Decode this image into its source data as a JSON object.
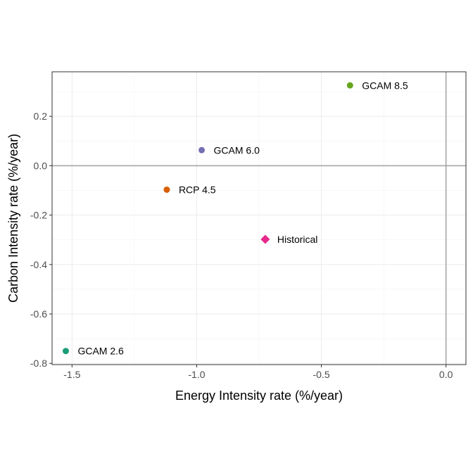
{
  "chart_data": {
    "type": "scatter",
    "xlabel": "Energy Intensity rate (%/year)",
    "ylabel": "Carbon Intensity rate (%/year)",
    "xlim": [
      -1.58,
      0.08
    ],
    "ylim": [
      -0.805,
      0.38
    ],
    "x_ticks": [
      -1.5,
      -1.0,
      -0.5,
      0.0
    ],
    "x_tick_labels": [
      "-1.5",
      "-1.0",
      "-0.5",
      "0.0"
    ],
    "y_ticks": [
      -0.8,
      -0.6,
      -0.4,
      -0.2,
      0.0,
      0.2
    ],
    "y_tick_labels": [
      "-0.8",
      "-0.6",
      "-0.4",
      "-0.2",
      "0.0",
      "0.2"
    ],
    "reference_lines": {
      "x": 0.0,
      "y": 0.0,
      "color": "#a6a6a6"
    },
    "grid": true,
    "points": [
      {
        "label": "GCAM 8.5",
        "x": -0.385,
        "y": 0.325,
        "color": "#66a61e",
        "shape": "circle"
      },
      {
        "label": "GCAM 6.0",
        "x": -0.98,
        "y": 0.063,
        "color": "#7570b3",
        "shape": "circle"
      },
      {
        "label": "RCP 4.5",
        "x": -1.12,
        "y": -0.097,
        "color": "#d95f02",
        "shape": "circle"
      },
      {
        "label": "Historical",
        "x": -0.725,
        "y": -0.298,
        "color": "#e7298a",
        "shape": "diamond"
      },
      {
        "label": "GCAM 2.6",
        "x": -1.525,
        "y": -0.75,
        "color": "#1b9e77",
        "shape": "circle"
      }
    ]
  }
}
